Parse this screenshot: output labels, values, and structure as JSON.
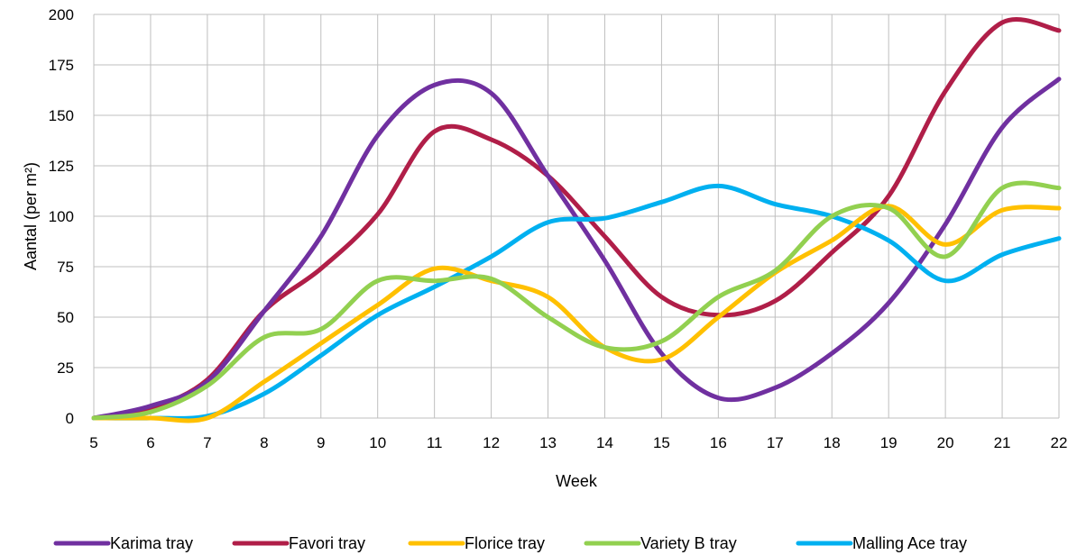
{
  "chart_data": {
    "type": "line",
    "title": "",
    "xlabel": "Week",
    "ylabel": "Aantal (per m²)",
    "x": [
      5,
      6,
      7,
      8,
      9,
      10,
      11,
      12,
      13,
      14,
      15,
      16,
      17,
      18,
      19,
      20,
      21,
      22
    ],
    "xlim": [
      5,
      22
    ],
    "ylim": [
      0,
      200
    ],
    "yticks": [
      0,
      25,
      50,
      75,
      100,
      125,
      150,
      175,
      200
    ],
    "grid": true,
    "smooth": true,
    "legend": "bottom",
    "series": [
      {
        "name": "Karima tray",
        "color": "#7030a0",
        "values": [
          0,
          6,
          18,
          53,
          90,
          140,
          165,
          161,
          120,
          78,
          32,
          10,
          15,
          32,
          57,
          96,
          144,
          168
        ]
      },
      {
        "name": "Favori  tray",
        "color": "#b01e48",
        "values": [
          0,
          5,
          19,
          53,
          74,
          101,
          142,
          138,
          120,
          90,
          60,
          51,
          58,
          82,
          110,
          162,
          196,
          192
        ]
      },
      {
        "name": "Florice  tray",
        "color": "#ffc000",
        "values": [
          0,
          0,
          0,
          18,
          37,
          56,
          74,
          68,
          60,
          35,
          29,
          50,
          72,
          88,
          105,
          86,
          103,
          104
        ]
      },
      {
        "name": "Variety B  tray",
        "color": "#92d050",
        "values": [
          0,
          3,
          16,
          40,
          44,
          68,
          68,
          69,
          50,
          35,
          38,
          60,
          73,
          100,
          104,
          80,
          114,
          114
        ]
      },
      {
        "name": "Malling Ace tray",
        "color": "#00b0f0",
        "values": [
          0,
          0,
          1,
          12,
          31,
          51,
          65,
          80,
          97,
          99,
          107,
          115,
          106,
          100,
          88,
          68,
          81,
          89
        ]
      }
    ]
  }
}
